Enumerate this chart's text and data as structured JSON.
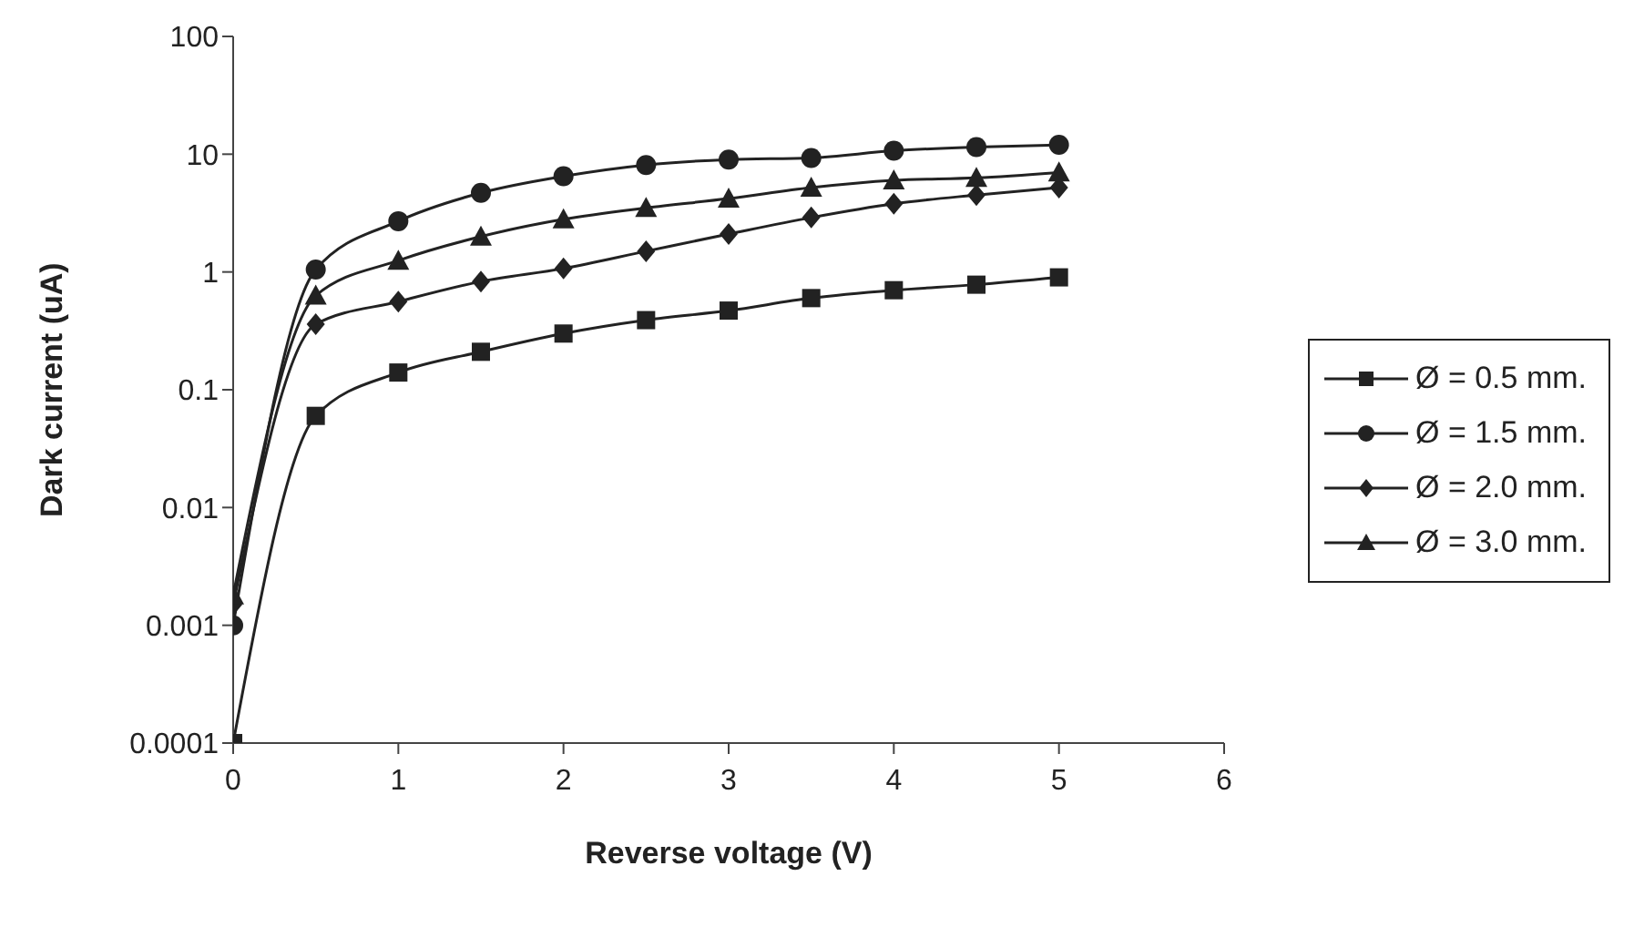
{
  "chart_data": {
    "type": "line",
    "xlabel": "Reverse voltage (V)",
    "ylabel": "Dark current (uA)",
    "x": [
      0,
      0.5,
      1,
      1.5,
      2,
      2.5,
      3,
      3.5,
      4,
      4.5,
      5
    ],
    "series": [
      {
        "name": "Ø = 0.5 mm.",
        "color": "#222222",
        "marker": "square",
        "values": [
          0.0001,
          0.06,
          0.14,
          0.21,
          0.3,
          0.39,
          0.47,
          0.6,
          0.7,
          0.78,
          0.9
        ]
      },
      {
        "name": "Ø = 1.5 mm.",
        "color": "#222222",
        "marker": "circle",
        "values": [
          0.001,
          1.05,
          2.7,
          4.7,
          6.5,
          8.1,
          9,
          9.3,
          10.7,
          11.5,
          12
        ]
      },
      {
        "name": "Ø = 2.0 mm.",
        "color": "#222222",
        "marker": "diamond",
        "values": [
          0.0015,
          0.36,
          0.56,
          0.83,
          1.07,
          1.5,
          2.1,
          2.9,
          3.8,
          4.5,
          5.2
        ]
      },
      {
        "name": "Ø = 3.0 mm.",
        "color": "#222222",
        "marker": "triangle",
        "values": [
          0.0018,
          0.63,
          1.25,
          2,
          2.8,
          3.5,
          4.2,
          5.2,
          6,
          6.3,
          7
        ]
      }
    ],
    "xlim": [
      0,
      6
    ],
    "xticks": [
      0,
      1,
      2,
      3,
      4,
      5,
      6
    ],
    "log": "y",
    "ylim": [
      0.0001,
      100
    ],
    "yticks": [
      0.0001,
      0.001,
      0.01,
      0.1,
      1,
      10,
      100
    ],
    "grid": false,
    "legend": "right",
    "line_style": "solid"
  }
}
